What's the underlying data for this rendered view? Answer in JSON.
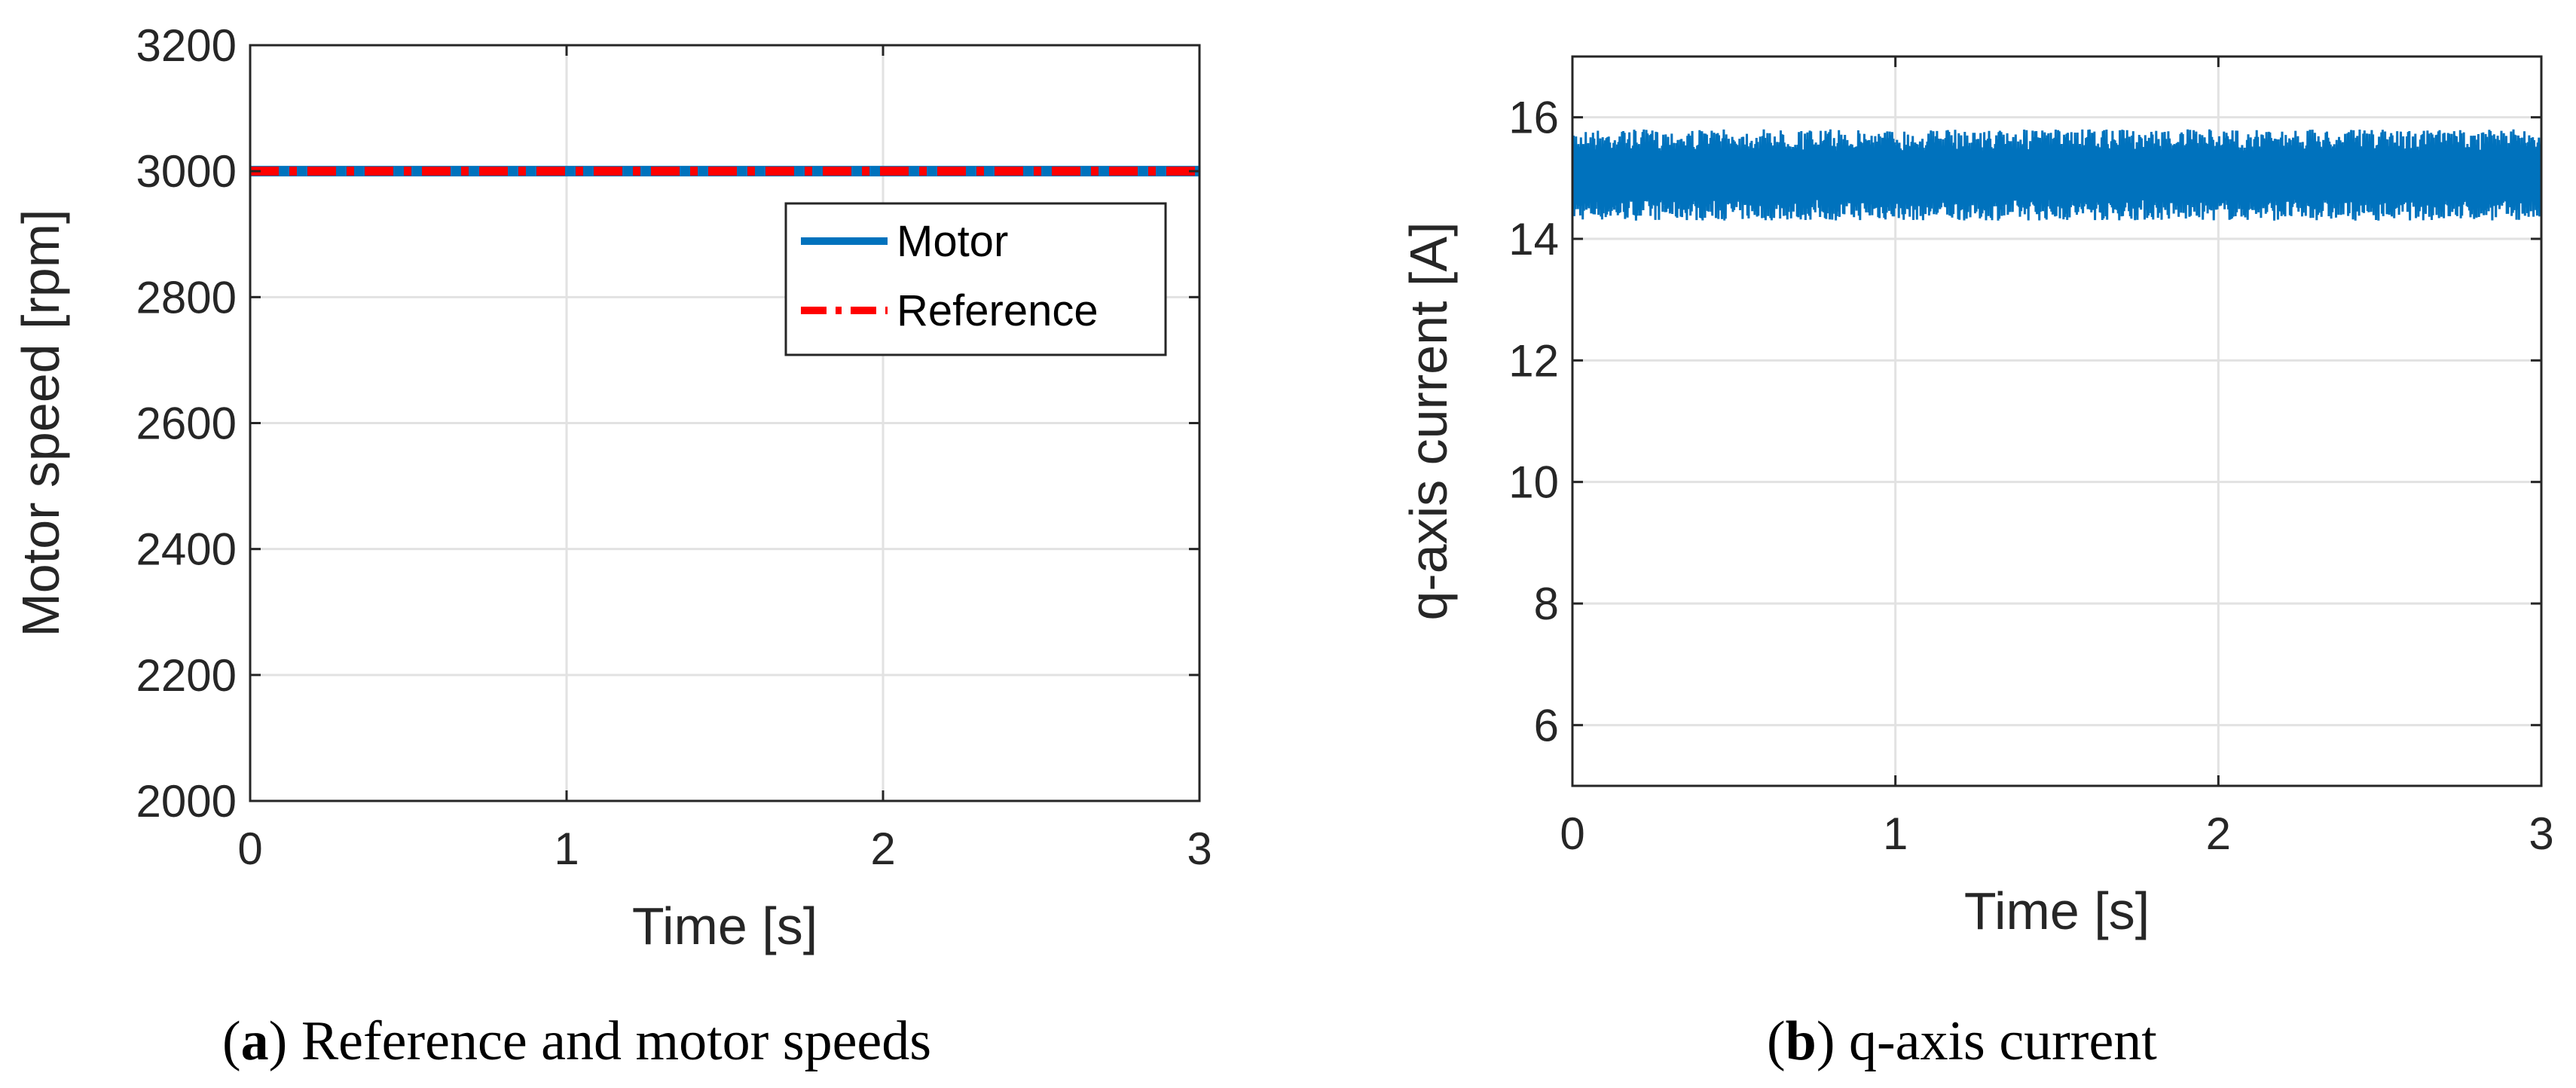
{
  "chart_data": [
    {
      "type": "line",
      "caption": {
        "letter": "a",
        "text": "Reference and motor speeds"
      },
      "xlabel": "Time [s]",
      "ylabel": "Motor speed [rpm]",
      "xlim": [
        0,
        3
      ],
      "ylim": [
        2000,
        3200
      ],
      "xticks": [
        0,
        1,
        2,
        3
      ],
      "yticks": [
        2000,
        2200,
        2400,
        2600,
        2800,
        3000,
        3200
      ],
      "grid": true,
      "legend": {
        "location": "top-right"
      },
      "series": [
        {
          "name": "Motor",
          "color": "#0072BD",
          "style": "solid",
          "x": [
            0,
            3
          ],
          "y": [
            3000,
            3000
          ]
        },
        {
          "name": "Reference",
          "color": "#FF0000",
          "style": "dashdot",
          "x": [
            0,
            3
          ],
          "y": [
            3000,
            3000
          ]
        }
      ]
    },
    {
      "type": "line",
      "caption": {
        "letter": "b",
        "text": "q-axis current"
      },
      "xlabel": "Time [s]",
      "ylabel": "q-axis current [A]",
      "xlim": [
        0,
        3
      ],
      "ylim": [
        5,
        17
      ],
      "xticks": [
        0,
        1,
        2,
        3
      ],
      "yticks": [
        6,
        8,
        10,
        12,
        14,
        16
      ],
      "grid": true,
      "series": [
        {
          "name": "q-axis current",
          "color": "#0072BD",
          "style": "solid",
          "mean": 15,
          "ripple_min": 14.3,
          "ripple_max": 15.8,
          "x_range": [
            0,
            3
          ]
        }
      ]
    }
  ]
}
